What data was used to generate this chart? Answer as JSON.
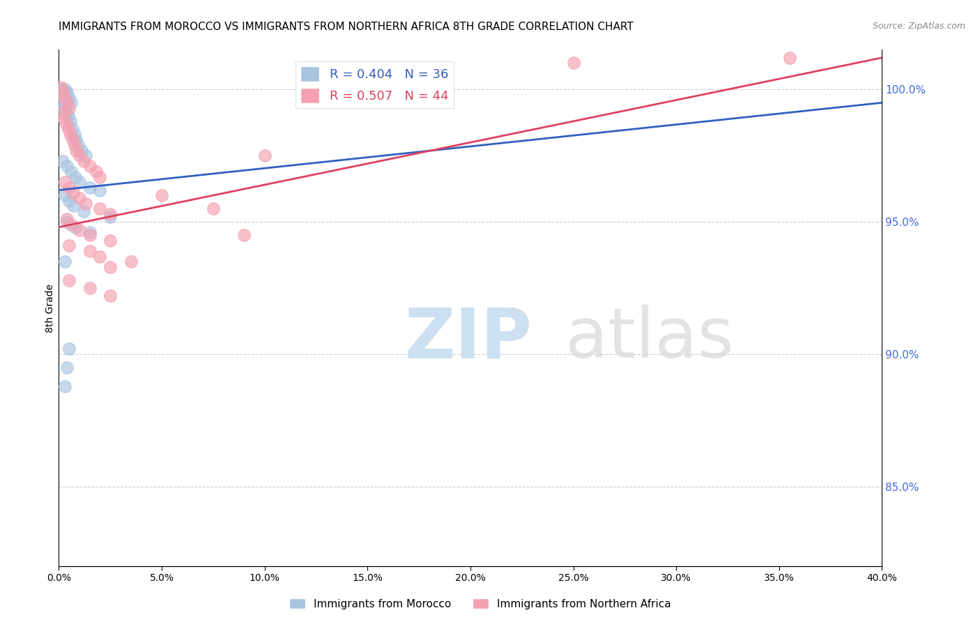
{
  "title": "IMMIGRANTS FROM MOROCCO VS IMMIGRANTS FROM NORTHERN AFRICA 8TH GRADE CORRELATION CHART",
  "source": "Source: ZipAtlas.com",
  "ylabel": "8th Grade",
  "xlim": [
    0.0,
    40.0
  ],
  "ylim": [
    82.0,
    101.5
  ],
  "yticks": [
    85.0,
    90.0,
    95.0,
    100.0
  ],
  "ytick_labels": [
    "85.0%",
    "90.0%",
    "95.0%",
    "100.0%"
  ],
  "xticks": [
    0.0,
    5.0,
    10.0,
    15.0,
    20.0,
    25.0,
    30.0,
    35.0,
    40.0
  ],
  "morocco_color": "#a8c4e0",
  "n_africa_color": "#f4a0b0",
  "morocco_line_color": "#3060c0",
  "n_africa_line_color": "#e04060",
  "morocco_line": [
    0.0,
    96.2,
    40.0,
    99.5
  ],
  "n_africa_line": [
    0.0,
    94.8,
    40.0,
    101.2
  ],
  "morocco_points": [
    [
      0.1,
      99.8
    ],
    [
      0.2,
      100.0
    ],
    [
      0.3,
      100.0
    ],
    [
      0.4,
      99.9
    ],
    [
      0.5,
      99.7
    ],
    [
      0.6,
      99.5
    ],
    [
      0.15,
      99.5
    ],
    [
      0.25,
      99.3
    ],
    [
      0.35,
      99.1
    ],
    [
      0.45,
      99.0
    ],
    [
      0.55,
      98.8
    ],
    [
      0.65,
      98.5
    ],
    [
      0.75,
      98.3
    ],
    [
      0.85,
      98.1
    ],
    [
      0.95,
      97.9
    ],
    [
      1.1,
      97.7
    ],
    [
      1.3,
      97.5
    ],
    [
      0.2,
      97.3
    ],
    [
      0.4,
      97.1
    ],
    [
      0.6,
      96.9
    ],
    [
      0.8,
      96.7
    ],
    [
      1.0,
      96.5
    ],
    [
      1.5,
      96.3
    ],
    [
      2.0,
      96.2
    ],
    [
      0.3,
      96.0
    ],
    [
      0.5,
      95.8
    ],
    [
      0.7,
      95.6
    ],
    [
      1.2,
      95.4
    ],
    [
      2.5,
      95.2
    ],
    [
      0.4,
      95.0
    ],
    [
      0.8,
      94.8
    ],
    [
      1.5,
      94.6
    ],
    [
      0.3,
      93.5
    ],
    [
      0.5,
      90.2
    ],
    [
      0.4,
      89.5
    ],
    [
      0.3,
      88.8
    ]
  ],
  "n_africa_points": [
    [
      0.1,
      100.1
    ],
    [
      0.2,
      99.9
    ],
    [
      0.3,
      99.7
    ],
    [
      0.4,
      99.5
    ],
    [
      0.5,
      99.3
    ],
    [
      0.15,
      99.1
    ],
    [
      0.25,
      98.9
    ],
    [
      0.35,
      98.7
    ],
    [
      0.45,
      98.5
    ],
    [
      0.55,
      98.3
    ],
    [
      0.65,
      98.1
    ],
    [
      0.75,
      97.9
    ],
    [
      0.85,
      97.7
    ],
    [
      1.0,
      97.5
    ],
    [
      1.2,
      97.3
    ],
    [
      1.5,
      97.1
    ],
    [
      1.8,
      96.9
    ],
    [
      2.0,
      96.7
    ],
    [
      0.3,
      96.5
    ],
    [
      0.5,
      96.3
    ],
    [
      0.7,
      96.1
    ],
    [
      1.0,
      95.9
    ],
    [
      1.3,
      95.7
    ],
    [
      2.0,
      95.5
    ],
    [
      2.5,
      95.3
    ],
    [
      0.4,
      95.1
    ],
    [
      0.6,
      94.9
    ],
    [
      1.0,
      94.7
    ],
    [
      1.5,
      94.5
    ],
    [
      2.5,
      94.3
    ],
    [
      0.5,
      94.1
    ],
    [
      1.5,
      93.9
    ],
    [
      2.0,
      93.7
    ],
    [
      3.5,
      93.5
    ],
    [
      2.5,
      93.3
    ],
    [
      0.5,
      92.8
    ],
    [
      1.5,
      92.5
    ],
    [
      2.5,
      92.2
    ],
    [
      5.0,
      96.0
    ],
    [
      7.5,
      95.5
    ],
    [
      9.0,
      94.5
    ],
    [
      10.0,
      97.5
    ],
    [
      25.0,
      101.0
    ],
    [
      35.5,
      101.2
    ]
  ]
}
